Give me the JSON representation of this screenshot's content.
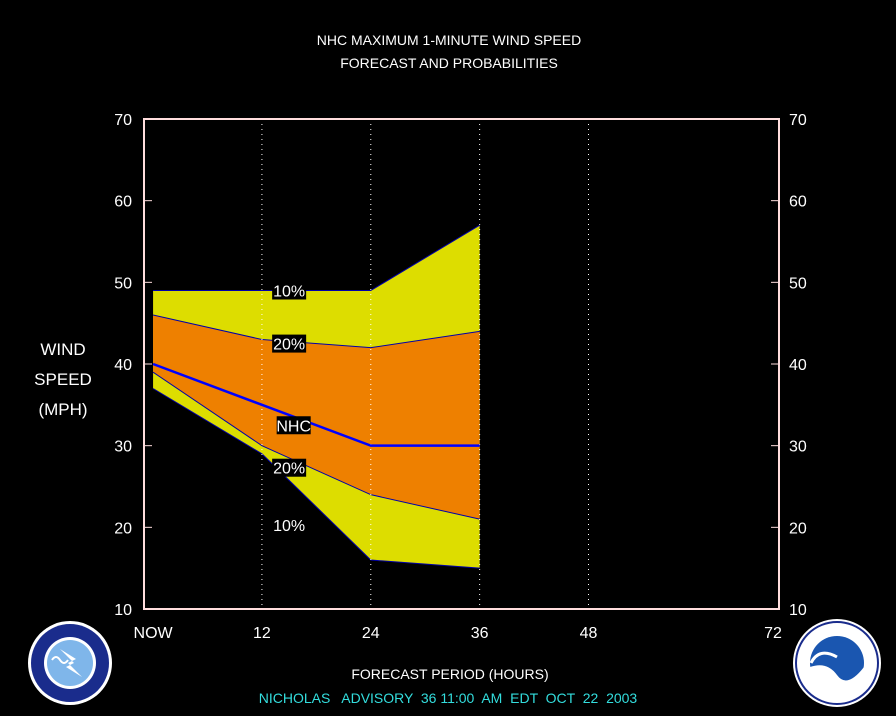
{
  "chart_data": {
    "type": "area",
    "title_lines": [
      "NHC MAXIMUM 1-MINUTE WIND SPEED",
      "FORECAST AND PROBABILITIES"
    ],
    "ylabel_lines": [
      "WIND",
      "SPEED",
      "(MPH)"
    ],
    "xlabel": "FORECAST PERIOD (HOURS)",
    "advisory_text": "NICHOLAS   ADVISORY  36 11:00  AM  EDT  OCT  22  2003",
    "x_ticks": [
      {
        "value": 0,
        "label": "NOW"
      },
      {
        "value": 12,
        "label": "12"
      },
      {
        "value": 24,
        "label": "24"
      },
      {
        "value": 36,
        "label": "36"
      },
      {
        "value": 48,
        "label": "48"
      },
      {
        "value": 72,
        "label": "72"
      }
    ],
    "y_ticks": [
      10,
      20,
      30,
      40,
      50,
      60,
      70
    ],
    "xlim": [
      -1,
      69
    ],
    "ylim": [
      10,
      70
    ],
    "grid": "dotted vertical lines at 12, 24, 36, 48",
    "x": [
      0,
      12,
      24,
      36
    ],
    "series": [
      {
        "name": "10%",
        "upper": [
          49,
          49,
          49,
          57
        ],
        "lower": [
          37,
          29,
          16,
          15
        ],
        "color": "#dddd00"
      },
      {
        "name": "20%",
        "upper": [
          46,
          43,
          42,
          44
        ],
        "lower": [
          39,
          30,
          24,
          21
        ],
        "color": "#ee8000"
      },
      {
        "name": "NHC",
        "values": [
          40,
          35,
          30,
          30
        ],
        "color": "#0000ff"
      }
    ],
    "band_labels": [
      {
        "text": "10%",
        "x": 15,
        "y": 49
      },
      {
        "text": "20%",
        "x": 15,
        "y": 42.5
      },
      {
        "text": "NHC",
        "x": 15.5,
        "y": 32.5
      },
      {
        "text": "20%",
        "x": 15,
        "y": 27.3
      },
      {
        "text": "10%",
        "x": 15,
        "y": 20.3
      }
    ]
  }
}
